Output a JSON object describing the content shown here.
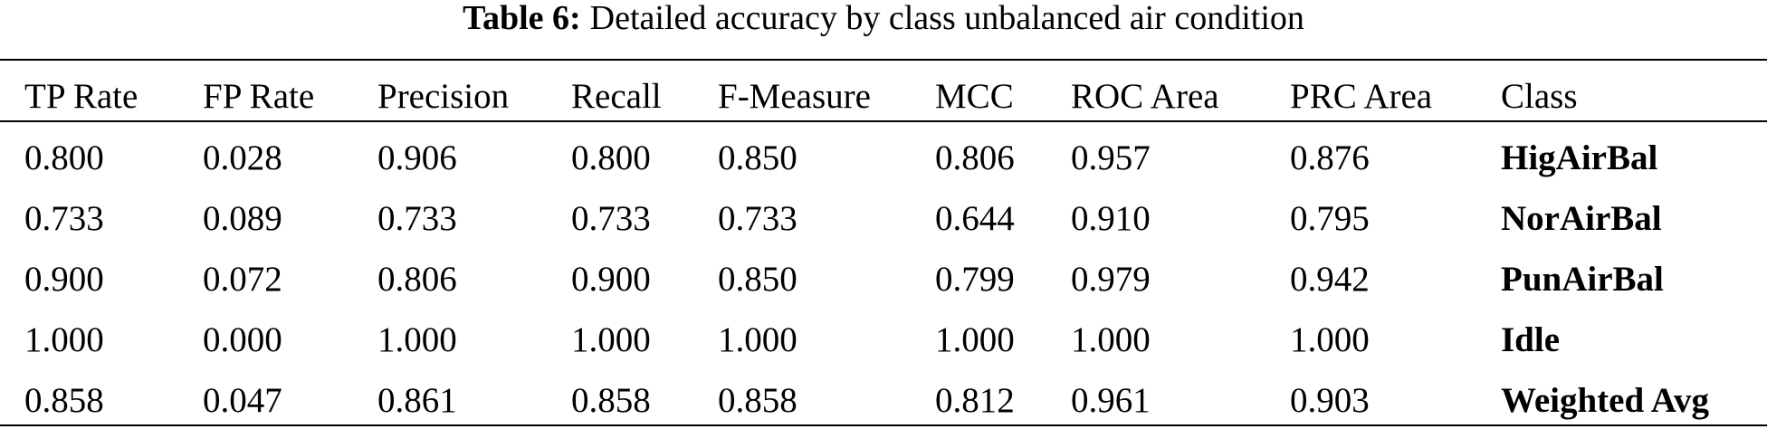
{
  "caption": {
    "label": "Table 6:",
    "text": "Detailed accuracy by class unbalanced air condition"
  },
  "table": {
    "header": [
      "TP Rate",
      "FP Rate",
      "Precision",
      "Recall",
      "F-Measure",
      "MCC",
      "ROC Area",
      "PRC Area",
      "Class"
    ],
    "rows": [
      [
        "0.800",
        "0.028",
        "0.906",
        "0.800",
        "0.850",
        "0.806",
        "0.957",
        "0.876",
        "HigAirBal"
      ],
      [
        "0.733",
        "0.089",
        "0.733",
        "0.733",
        "0.733",
        "0.644",
        "0.910",
        "0.795",
        "NorAirBal"
      ],
      [
        "0.900",
        "0.072",
        "0.806",
        "0.900",
        "0.850",
        "0.799",
        "0.979",
        "0.942",
        "PunAirBal"
      ],
      [
        "1.000",
        "0.000",
        "1.000",
        "1.000",
        "1.000",
        "1.000",
        "1.000",
        "1.000",
        "Idle"
      ],
      [
        "0.858",
        "0.047",
        "0.861",
        "0.858",
        "0.858",
        "0.812",
        "0.961",
        "0.903",
        "Weighted Avg"
      ]
    ]
  }
}
